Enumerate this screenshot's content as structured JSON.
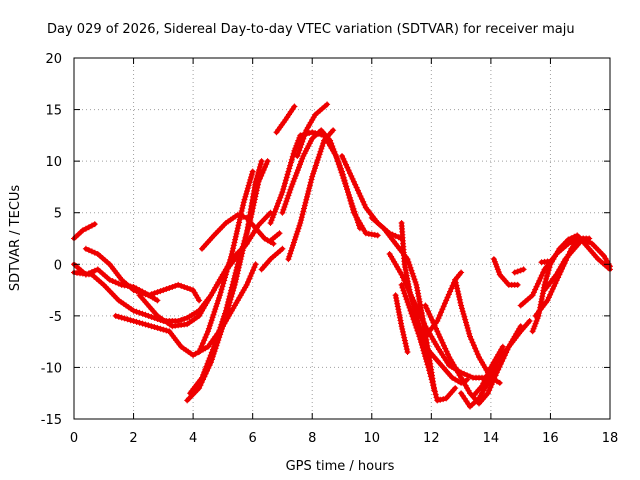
{
  "chart_data": {
    "type": "scatter",
    "title": "Day 029 of 2026, Sidereal Day-to-day VTEC variation (SDTVAR) for receiver maju",
    "xlabel": "GPS time / hours",
    "ylabel": "SDTVAR / TECUs",
    "xlim": [
      0,
      18
    ],
    "ylim": [
      -15,
      20
    ],
    "xticks": [
      0,
      2,
      4,
      6,
      8,
      10,
      12,
      14,
      16,
      18
    ],
    "yticks": [
      -15,
      -10,
      -5,
      0,
      5,
      10,
      15,
      20
    ],
    "grid": true,
    "marker": "+",
    "color": "#ee0000",
    "series": [
      {
        "name": "s1",
        "points": [
          [
            0,
            2.5
          ],
          [
            0.3,
            3.3
          ],
          [
            0.7,
            3.9
          ]
        ]
      },
      {
        "name": "s2",
        "points": [
          [
            0,
            0
          ],
          [
            0.4,
            -1
          ],
          [
            0.8,
            -0.5
          ],
          [
            1.2,
            -1.5
          ],
          [
            1.6,
            -2
          ],
          [
            2,
            -2.2
          ],
          [
            2.4,
            -2.8
          ],
          [
            2.8,
            -3.5
          ]
        ]
      },
      {
        "name": "s3",
        "points": [
          [
            0.4,
            1.5
          ],
          [
            0.8,
            1
          ],
          [
            1.2,
            0
          ],
          [
            1.6,
            -1.5
          ],
          [
            2,
            -2.5
          ],
          [
            2.5,
            -3
          ],
          [
            3,
            -2.5
          ],
          [
            3.5,
            -2
          ],
          [
            4,
            -2.5
          ],
          [
            4.2,
            -3.5
          ]
        ]
      },
      {
        "name": "s4",
        "points": [
          [
            1.4,
            -5
          ],
          [
            2,
            -5.5
          ],
          [
            2.6,
            -6
          ],
          [
            3.2,
            -6.5
          ],
          [
            3.6,
            -8
          ],
          [
            4,
            -8.8
          ],
          [
            4.5,
            -8
          ],
          [
            5,
            -6
          ],
          [
            5.4,
            -4
          ],
          [
            5.8,
            -2
          ],
          [
            6.1,
            0
          ]
        ]
      },
      {
        "name": "s5",
        "points": [
          [
            0,
            -0.8
          ],
          [
            0.6,
            -1
          ],
          [
            1,
            -2
          ],
          [
            1.5,
            -3.5
          ],
          [
            2,
            -4.5
          ],
          [
            2.5,
            -5
          ],
          [
            3,
            -5.5
          ],
          [
            3.5,
            -5.5
          ],
          [
            3.8,
            -5.2
          ],
          [
            4.2,
            -4.5
          ],
          [
            4.6,
            -3
          ],
          [
            5,
            -1
          ],
          [
            5.4,
            0.5
          ],
          [
            5.8,
            2
          ],
          [
            6.2,
            3.8
          ],
          [
            6.6,
            5
          ]
        ]
      },
      {
        "name": "s6",
        "points": [
          [
            3.8,
            -13.2
          ],
          [
            4.2,
            -12
          ],
          [
            4.6,
            -9.5
          ],
          [
            5,
            -6
          ],
          [
            5.4,
            -2
          ],
          [
            5.8,
            3
          ],
          [
            6.1,
            8
          ],
          [
            6.3,
            10
          ]
        ]
      },
      {
        "name": "s7",
        "points": [
          [
            3.9,
            -12.5
          ],
          [
            4.3,
            -11
          ],
          [
            4.7,
            -8
          ],
          [
            5.1,
            -4.5
          ],
          [
            5.5,
            0
          ],
          [
            5.9,
            4
          ],
          [
            6.2,
            8
          ],
          [
            6.5,
            10
          ]
        ]
      },
      {
        "name": "s8",
        "points": [
          [
            4.2,
            -8.5
          ],
          [
            4.5,
            -6.5
          ],
          [
            4.9,
            -3
          ],
          [
            5.3,
            1
          ],
          [
            5.7,
            6
          ],
          [
            6,
            9
          ]
        ]
      },
      {
        "name": "s9",
        "points": [
          [
            2.2,
            -3
          ],
          [
            2.8,
            -5
          ],
          [
            3.3,
            -6
          ],
          [
            3.8,
            -5.8
          ],
          [
            4.2,
            -5
          ],
          [
            4.6,
            -3
          ],
          [
            5,
            -1
          ],
          [
            5.3,
            0.5
          ],
          [
            5.8,
            2
          ]
        ]
      },
      {
        "name": "s10",
        "points": [
          [
            4.3,
            1.5
          ],
          [
            4.7,
            2.8
          ],
          [
            5.1,
            4
          ],
          [
            5.5,
            4.8
          ],
          [
            5.8,
            4.5
          ],
          [
            6.1,
            3.5
          ],
          [
            6.4,
            2.5
          ],
          [
            6.7,
            2
          ]
        ]
      },
      {
        "name": "s11",
        "points": [
          [
            6.6,
            2.3
          ],
          [
            6.9,
            3
          ]
        ]
      },
      {
        "name": "s12",
        "points": [
          [
            6.3,
            -0.5
          ],
          [
            6.6,
            0.5
          ],
          [
            7,
            1.5
          ]
        ]
      },
      {
        "name": "s13",
        "points": [
          [
            6.6,
            4
          ],
          [
            7,
            7
          ],
          [
            7.4,
            11
          ],
          [
            7.6,
            12.5
          ],
          [
            8,
            12.8
          ],
          [
            8.4,
            12.5
          ],
          [
            8.8,
            10.5
          ],
          [
            9.2,
            7
          ],
          [
            9.6,
            3.5
          ]
        ]
      },
      {
        "name": "s14",
        "points": [
          [
            7,
            5
          ],
          [
            7.3,
            7.5
          ],
          [
            7.7,
            10.5
          ],
          [
            8,
            12.2
          ],
          [
            8.3,
            13
          ],
          [
            8.6,
            12
          ],
          [
            9,
            9
          ],
          [
            9.4,
            5
          ],
          [
            9.8,
            3
          ],
          [
            10.2,
            2.8
          ]
        ]
      },
      {
        "name": "s15",
        "points": [
          [
            7.2,
            0.5
          ],
          [
            7.6,
            4
          ],
          [
            8,
            8.5
          ],
          [
            8.4,
            12
          ],
          [
            8.7,
            13
          ]
        ]
      },
      {
        "name": "s16",
        "points": [
          [
            6.8,
            12.8
          ],
          [
            7.1,
            14
          ],
          [
            7.4,
            15.3
          ]
        ]
      },
      {
        "name": "s17",
        "points": [
          [
            7.5,
            10.5
          ],
          [
            7.8,
            13
          ],
          [
            8.1,
            14.5
          ],
          [
            8.5,
            15.5
          ]
        ]
      },
      {
        "name": "s18",
        "points": [
          [
            9,
            10.5
          ],
          [
            9.4,
            8
          ],
          [
            9.8,
            5.5
          ],
          [
            10.2,
            4
          ],
          [
            10.6,
            3
          ],
          [
            11,
            2.5
          ]
        ]
      },
      {
        "name": "s19",
        "points": [
          [
            10,
            4.5
          ],
          [
            10.4,
            3.5
          ],
          [
            10.8,
            2
          ],
          [
            11.2,
            0.5
          ],
          [
            11.5,
            -2
          ],
          [
            11.7,
            -5
          ],
          [
            11.9,
            -8.5
          ],
          [
            12.1,
            -12.2
          ]
        ]
      },
      {
        "name": "s20",
        "points": [
          [
            11,
            4
          ],
          [
            11.1,
            0
          ],
          [
            11.3,
            -3
          ],
          [
            11.6,
            -6
          ],
          [
            11.8,
            -8
          ],
          [
            12.1,
            -9
          ],
          [
            12.4,
            -10
          ],
          [
            12.7,
            -11
          ],
          [
            13,
            -11.5
          ],
          [
            13.2,
            -11.2
          ]
        ]
      },
      {
        "name": "s21",
        "points": [
          [
            10.6,
            1
          ],
          [
            11,
            -1
          ],
          [
            11.4,
            -3.5
          ],
          [
            11.8,
            -6
          ],
          [
            12.2,
            -8
          ],
          [
            12.6,
            -9.8
          ],
          [
            13,
            -10.5
          ],
          [
            13.4,
            -11
          ],
          [
            13.8,
            -11
          ]
        ]
      },
      {
        "name": "s22",
        "points": [
          [
            11,
            -2
          ],
          [
            11.3,
            -4.5
          ],
          [
            11.6,
            -7
          ],
          [
            11.9,
            -10
          ],
          [
            12.2,
            -13.2
          ],
          [
            12.5,
            -13
          ],
          [
            12.8,
            -12
          ]
        ]
      },
      {
        "name": "s23",
        "points": [
          [
            10.8,
            -3
          ],
          [
            11,
            -6
          ],
          [
            11.2,
            -8.5
          ]
        ]
      },
      {
        "name": "s24",
        "points": [
          [
            12.8,
            -1.5
          ],
          [
            13,
            -4
          ],
          [
            13.3,
            -7
          ],
          [
            13.6,
            -9
          ],
          [
            14,
            -11
          ],
          [
            14.3,
            -11.5
          ]
        ]
      },
      {
        "name": "s25",
        "points": [
          [
            11.8,
            -4
          ],
          [
            12.2,
            -6.5
          ],
          [
            12.6,
            -9
          ],
          [
            13,
            -11
          ],
          [
            13.3,
            -12.5
          ],
          [
            13.6,
            -13.5
          ],
          [
            13.9,
            -12.5
          ],
          [
            14.2,
            -10.5
          ],
          [
            14.6,
            -8
          ],
          [
            15,
            -6
          ]
        ]
      },
      {
        "name": "s26",
        "points": [
          [
            11.8,
            -7
          ],
          [
            12.2,
            -5.5
          ],
          [
            12.5,
            -3.5
          ],
          [
            12.8,
            -1.5
          ],
          [
            13,
            -0.8
          ]
        ]
      },
      {
        "name": "s27",
        "points": [
          [
            13,
            -12.5
          ],
          [
            13.3,
            -13.8
          ],
          [
            13.6,
            -13
          ],
          [
            13.9,
            -11.5
          ],
          [
            14.2,
            -9.5
          ],
          [
            14.6,
            -8
          ],
          [
            15,
            -6.5
          ],
          [
            15.3,
            -5.5
          ]
        ]
      },
      {
        "name": "s28",
        "points": [
          [
            13.4,
            -12.8
          ],
          [
            13.7,
            -11.8
          ],
          [
            14,
            -10
          ],
          [
            14.4,
            -8
          ]
        ]
      },
      {
        "name": "s29",
        "points": [
          [
            14.1,
            0.5
          ],
          [
            14.3,
            -1
          ],
          [
            14.6,
            -2
          ],
          [
            14.9,
            -2
          ]
        ]
      },
      {
        "name": "s30",
        "points": [
          [
            14.8,
            -0.8
          ],
          [
            15.1,
            -0.5
          ]
        ]
      },
      {
        "name": "s31",
        "points": [
          [
            15.4,
            -6.5
          ],
          [
            15.6,
            -5
          ],
          [
            15.8,
            -2
          ],
          [
            16,
            0
          ],
          [
            16.3,
            1.5
          ],
          [
            16.6,
            2.4
          ],
          [
            16.9,
            2.8
          ],
          [
            17.2,
            2
          ]
        ]
      },
      {
        "name": "s32",
        "points": [
          [
            15,
            -4
          ],
          [
            15.4,
            -3
          ],
          [
            15.8,
            -0.5
          ],
          [
            16.2,
            1
          ],
          [
            16.6,
            2
          ],
          [
            17,
            2.5
          ],
          [
            17.3,
            2.5
          ]
        ]
      },
      {
        "name": "s33",
        "points": [
          [
            15.5,
            -5
          ],
          [
            15.9,
            -3.5
          ],
          [
            16.3,
            -1
          ],
          [
            16.7,
            1.5
          ],
          [
            17,
            2.5
          ],
          [
            17.3,
            1.5
          ],
          [
            17.6,
            0.5
          ],
          [
            18,
            -0.5
          ]
        ]
      },
      {
        "name": "s34",
        "points": [
          [
            15.8,
            -2.5
          ],
          [
            16.2,
            -1
          ],
          [
            16.5,
            0.5
          ],
          [
            16.8,
            1.5
          ],
          [
            17.1,
            2.5
          ],
          [
            17.4,
            2
          ],
          [
            17.8,
            0.8
          ],
          [
            18,
            -0.2
          ]
        ]
      },
      {
        "name": "s35",
        "points": [
          [
            15.7,
            0.2
          ],
          [
            16,
            0.3
          ]
        ]
      }
    ]
  }
}
